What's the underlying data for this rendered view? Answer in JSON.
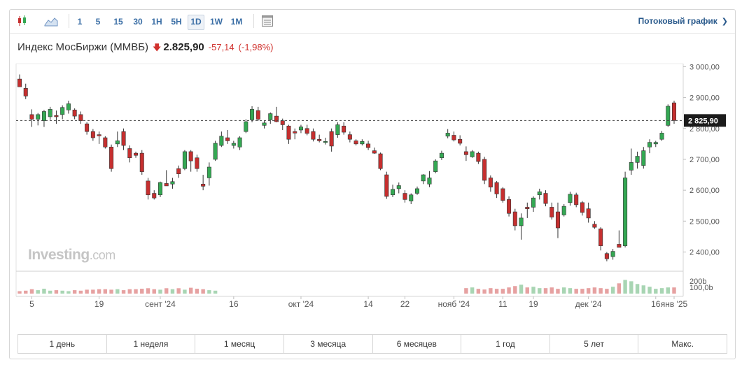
{
  "toolbar": {
    "candle_icon": "candlestick-icon",
    "area_icon": "area-chart-icon",
    "intervals": [
      "1",
      "5",
      "15",
      "30",
      "1H",
      "5H",
      "1D",
      "1W",
      "1M"
    ],
    "active_interval": "1D",
    "settings_icon": "chart-settings-icon",
    "stream_label": "Потоковый график",
    "stream_icon": "chevron-right-icon"
  },
  "header": {
    "name": "Индекс МосБиржи (MMBБ)",
    "price": "2.825,90",
    "change": "-57,14",
    "change_pct": "(-1,98%)",
    "down_color": "#d0312d"
  },
  "watermark": {
    "brand": "Investing",
    "domain": ".com"
  },
  "periods": [
    "1 день",
    "1 неделя",
    "1 месяц",
    "3 месяца",
    "6 месяцев",
    "1 год",
    "5 лет",
    "Макс."
  ],
  "chart_data": {
    "type": "candlestick",
    "y_ticks": [
      "3 000,00",
      "2 900,00",
      "2 800,00",
      "2 700,00",
      "2 600,00",
      "2 500,00",
      "2 400,00"
    ],
    "ylim": [
      2340,
      3010
    ],
    "last_price_label": "2 825,90",
    "last_price": 2825.9,
    "volume_ticks": [
      "200b",
      "100,0b"
    ],
    "x_labels": [
      "5",
      "19",
      "сент '24",
      "16",
      "окт '24",
      "14",
      "22",
      "нояб '24",
      "11",
      "19",
      "дек '24",
      "16",
      "янв '25"
    ],
    "up_color": "#34a853",
    "down_color": "#c62f2f",
    "candles": [
      {
        "o": 2960,
        "h": 2975,
        "l": 2940,
        "c": 2935
      },
      {
        "o": 2930,
        "h": 2945,
        "l": 2895,
        "c": 2905
      },
      {
        "o": 2845,
        "h": 2862,
        "l": 2805,
        "c": 2830
      },
      {
        "o": 2830,
        "h": 2850,
        "l": 2810,
        "c": 2845
      },
      {
        "o": 2825,
        "h": 2860,
        "l": 2805,
        "c": 2855
      },
      {
        "o": 2838,
        "h": 2870,
        "l": 2828,
        "c": 2862
      },
      {
        "o": 2842,
        "h": 2858,
        "l": 2815,
        "c": 2838
      },
      {
        "o": 2845,
        "h": 2875,
        "l": 2830,
        "c": 2868
      },
      {
        "o": 2860,
        "h": 2890,
        "l": 2848,
        "c": 2880
      },
      {
        "o": 2860,
        "h": 2865,
        "l": 2830,
        "c": 2840
      },
      {
        "o": 2845,
        "h": 2855,
        "l": 2815,
        "c": 2825
      },
      {
        "o": 2815,
        "h": 2820,
        "l": 2780,
        "c": 2790
      },
      {
        "o": 2790,
        "h": 2798,
        "l": 2760,
        "c": 2770
      },
      {
        "o": 2780,
        "h": 2790,
        "l": 2750,
        "c": 2776
      },
      {
        "o": 2770,
        "h": 2775,
        "l": 2735,
        "c": 2740
      },
      {
        "o": 2740,
        "h": 2748,
        "l": 2660,
        "c": 2670
      },
      {
        "o": 2750,
        "h": 2790,
        "l": 2740,
        "c": 2760
      },
      {
        "o": 2790,
        "h": 2800,
        "l": 2730,
        "c": 2745
      },
      {
        "o": 2735,
        "h": 2745,
        "l": 2690,
        "c": 2705
      },
      {
        "o": 2720,
        "h": 2725,
        "l": 2705,
        "c": 2713
      },
      {
        "o": 2720,
        "h": 2730,
        "l": 2650,
        "c": 2660
      },
      {
        "o": 2630,
        "h": 2640,
        "l": 2570,
        "c": 2585
      },
      {
        "o": 2590,
        "h": 2600,
        "l": 2570,
        "c": 2575
      },
      {
        "o": 2585,
        "h": 2628,
        "l": 2578,
        "c": 2625
      },
      {
        "o": 2622,
        "h": 2665,
        "l": 2615,
        "c": 2614
      },
      {
        "o": 2620,
        "h": 2640,
        "l": 2605,
        "c": 2628
      },
      {
        "o": 2670,
        "h": 2680,
        "l": 2640,
        "c": 2653
      },
      {
        "o": 2670,
        "h": 2730,
        "l": 2665,
        "c": 2725
      },
      {
        "o": 2725,
        "h": 2730,
        "l": 2660,
        "c": 2695
      },
      {
        "o": 2705,
        "h": 2715,
        "l": 2660,
        "c": 2670
      },
      {
        "o": 2620,
        "h": 2650,
        "l": 2600,
        "c": 2613
      },
      {
        "o": 2640,
        "h": 2690,
        "l": 2615,
        "c": 2675
      },
      {
        "o": 2700,
        "h": 2760,
        "l": 2695,
        "c": 2752
      },
      {
        "o": 2745,
        "h": 2790,
        "l": 2740,
        "c": 2775
      },
      {
        "o": 2770,
        "h": 2795,
        "l": 2750,
        "c": 2760
      },
      {
        "o": 2745,
        "h": 2760,
        "l": 2735,
        "c": 2752
      },
      {
        "o": 2740,
        "h": 2775,
        "l": 2730,
        "c": 2770
      },
      {
        "o": 2790,
        "h": 2830,
        "l": 2785,
        "c": 2822
      },
      {
        "o": 2828,
        "h": 2872,
        "l": 2820,
        "c": 2862
      },
      {
        "o": 2858,
        "h": 2870,
        "l": 2825,
        "c": 2830
      },
      {
        "o": 2810,
        "h": 2825,
        "l": 2800,
        "c": 2818
      },
      {
        "o": 2828,
        "h": 2852,
        "l": 2815,
        "c": 2848
      },
      {
        "o": 2840,
        "h": 2870,
        "l": 2820,
        "c": 2822
      },
      {
        "o": 2825,
        "h": 2832,
        "l": 2795,
        "c": 2812
      },
      {
        "o": 2808,
        "h": 2812,
        "l": 2750,
        "c": 2765
      },
      {
        "o": 2790,
        "h": 2800,
        "l": 2765,
        "c": 2785
      },
      {
        "o": 2795,
        "h": 2812,
        "l": 2785,
        "c": 2805
      },
      {
        "o": 2800,
        "h": 2812,
        "l": 2778,
        "c": 2784
      },
      {
        "o": 2790,
        "h": 2800,
        "l": 2758,
        "c": 2765
      },
      {
        "o": 2765,
        "h": 2780,
        "l": 2755,
        "c": 2760
      },
      {
        "o": 2758,
        "h": 2770,
        "l": 2748,
        "c": 2758
      },
      {
        "o": 2790,
        "h": 2800,
        "l": 2725,
        "c": 2743
      },
      {
        "o": 2780,
        "h": 2820,
        "l": 2770,
        "c": 2812
      },
      {
        "o": 2808,
        "h": 2820,
        "l": 2780,
        "c": 2788
      },
      {
        "o": 2780,
        "h": 2790,
        "l": 2755,
        "c": 2765
      },
      {
        "o": 2760,
        "h": 2765,
        "l": 2745,
        "c": 2750
      },
      {
        "o": 2750,
        "h": 2765,
        "l": 2745,
        "c": 2758
      },
      {
        "o": 2750,
        "h": 2760,
        "l": 2730,
        "c": 2738
      },
      {
        "o": 2728,
        "h": 2738,
        "l": 2718,
        "c": 2720
      },
      {
        "o": 2718,
        "h": 2722,
        "l": 2665,
        "c": 2670
      },
      {
        "o": 2650,
        "h": 2660,
        "l": 2572,
        "c": 2580
      },
      {
        "o": 2585,
        "h": 2618,
        "l": 2578,
        "c": 2603
      },
      {
        "o": 2605,
        "h": 2625,
        "l": 2590,
        "c": 2615
      },
      {
        "o": 2590,
        "h": 2600,
        "l": 2560,
        "c": 2570
      },
      {
        "o": 2565,
        "h": 2590,
        "l": 2555,
        "c": 2585
      },
      {
        "o": 2590,
        "h": 2612,
        "l": 2585,
        "c": 2605
      },
      {
        "o": 2630,
        "h": 2652,
        "l": 2620,
        "c": 2650
      },
      {
        "o": 2620,
        "h": 2662,
        "l": 2610,
        "c": 2640
      },
      {
        "o": 2660,
        "h": 2700,
        "l": 2655,
        "c": 2695
      },
      {
        "o": 2705,
        "h": 2728,
        "l": 2698,
        "c": 2720
      },
      {
        "o": 2775,
        "h": 2798,
        "l": 2768,
        "c": 2785
      },
      {
        "o": 2778,
        "h": 2790,
        "l": 2758,
        "c": 2763
      },
      {
        "o": 2765,
        "h": 2778,
        "l": 2745,
        "c": 2752
      },
      {
        "o": 2725,
        "h": 2742,
        "l": 2695,
        "c": 2715
      },
      {
        "o": 2708,
        "h": 2730,
        "l": 2705,
        "c": 2725
      },
      {
        "o": 2720,
        "h": 2725,
        "l": 2685,
        "c": 2693
      },
      {
        "o": 2700,
        "h": 2708,
        "l": 2620,
        "c": 2632
      },
      {
        "o": 2640,
        "h": 2648,
        "l": 2595,
        "c": 2610
      },
      {
        "o": 2625,
        "h": 2630,
        "l": 2575,
        "c": 2588
      },
      {
        "o": 2605,
        "h": 2610,
        "l": 2560,
        "c": 2567
      },
      {
        "o": 2570,
        "h": 2580,
        "l": 2515,
        "c": 2525
      },
      {
        "o": 2530,
        "h": 2540,
        "l": 2470,
        "c": 2485
      },
      {
        "o": 2485,
        "h": 2525,
        "l": 2440,
        "c": 2510
      },
      {
        "o": 2545,
        "h": 2560,
        "l": 2510,
        "c": 2540
      },
      {
        "o": 2545,
        "h": 2580,
        "l": 2530,
        "c": 2575
      },
      {
        "o": 2585,
        "h": 2605,
        "l": 2570,
        "c": 2595
      },
      {
        "o": 2590,
        "h": 2600,
        "l": 2548,
        "c": 2557
      },
      {
        "o": 2545,
        "h": 2560,
        "l": 2505,
        "c": 2513
      },
      {
        "o": 2530,
        "h": 2560,
        "l": 2445,
        "c": 2478
      },
      {
        "o": 2520,
        "h": 2555,
        "l": 2515,
        "c": 2548
      },
      {
        "o": 2560,
        "h": 2595,
        "l": 2550,
        "c": 2587
      },
      {
        "o": 2585,
        "h": 2592,
        "l": 2545,
        "c": 2553
      },
      {
        "o": 2560,
        "h": 2565,
        "l": 2518,
        "c": 2528
      },
      {
        "o": 2540,
        "h": 2560,
        "l": 2495,
        "c": 2510
      },
      {
        "o": 2490,
        "h": 2500,
        "l": 2475,
        "c": 2480
      },
      {
        "o": 2475,
        "h": 2480,
        "l": 2405,
        "c": 2420
      },
      {
        "o": 2395,
        "h": 2400,
        "l": 2370,
        "c": 2378
      },
      {
        "o": 2385,
        "h": 2410,
        "l": 2375,
        "c": 2402
      },
      {
        "o": 2425,
        "h": 2470,
        "l": 2415,
        "c": 2415
      },
      {
        "o": 2420,
        "h": 2660,
        "l": 2415,
        "c": 2640
      },
      {
        "o": 2665,
        "h": 2735,
        "l": 2650,
        "c": 2690
      },
      {
        "o": 2690,
        "h": 2725,
        "l": 2670,
        "c": 2710
      },
      {
        "o": 2680,
        "h": 2740,
        "l": 2670,
        "c": 2728
      },
      {
        "o": 2740,
        "h": 2765,
        "l": 2720,
        "c": 2755
      },
      {
        "o": 2750,
        "h": 2760,
        "l": 2740,
        "c": 2755
      },
      {
        "o": 2765,
        "h": 2792,
        "l": 2760,
        "c": 2785
      },
      {
        "o": 2810,
        "h": 2878,
        "l": 2805,
        "c": 2872
      },
      {
        "o": 2883,
        "h": 2890,
        "l": 2815,
        "c": 2825.9
      }
    ],
    "volume_rel": [
      0.25,
      0.3,
      0.45,
      0.35,
      0.5,
      0.3,
      0.35,
      0.3,
      0.25,
      0.35,
      0.3,
      0.4,
      0.4,
      0.45,
      0.45,
      0.4,
      0.45,
      0.35,
      0.45,
      0.45,
      0.5,
      0.55,
      0.45,
      0.4,
      0.55,
      0.45,
      0.55,
      0.4,
      0.6,
      0.5,
      0.45,
      0.35,
      0.3
    ],
    "volume_rel_late": [
      0.4,
      0.45,
      0.35,
      0.3,
      0.4,
      0.35,
      0.35,
      0.45,
      0.55,
      0.65,
      0.45,
      0.5,
      0.4,
      0.4,
      0.45,
      0.35,
      0.45,
      0.4,
      0.35,
      0.35,
      0.4,
      0.45,
      0.4,
      0.35,
      0.5,
      0.75,
      1.0,
      0.9,
      0.7,
      0.6,
      0.5,
      0.35,
      0.4,
      0.45,
      0.45
    ]
  }
}
